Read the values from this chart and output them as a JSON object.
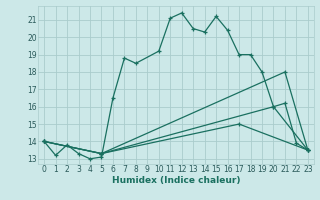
{
  "title": "",
  "xlabel": "Humidex (Indice chaleur)",
  "ylabel": "",
  "bg_color": "#cce8e8",
  "grid_color": "#aacccc",
  "line_color": "#1a7060",
  "xlim": [
    -0.5,
    23.5
  ],
  "ylim": [
    12.7,
    21.8
  ],
  "yticks": [
    13,
    14,
    15,
    16,
    17,
    18,
    19,
    20,
    21
  ],
  "xticks": [
    0,
    1,
    2,
    3,
    4,
    5,
    6,
    7,
    8,
    9,
    10,
    11,
    12,
    13,
    14,
    15,
    16,
    17,
    18,
    19,
    20,
    21,
    22,
    23
  ],
  "lines": [
    {
      "x": [
        0,
        1,
        2,
        3,
        4,
        5,
        6,
        7,
        8,
        10,
        11,
        12,
        13,
        14,
        15,
        16,
        17,
        18,
        19,
        20,
        21,
        22,
        23
      ],
      "y": [
        14.0,
        13.2,
        13.8,
        13.3,
        13.0,
        13.1,
        16.5,
        18.8,
        18.5,
        19.2,
        21.1,
        21.4,
        20.5,
        20.3,
        21.2,
        20.4,
        19.0,
        19.0,
        18.0,
        16.0,
        16.2,
        13.9,
        13.5
      ]
    },
    {
      "x": [
        0,
        5,
        21,
        23
      ],
      "y": [
        14.0,
        13.3,
        18.0,
        13.5
      ]
    },
    {
      "x": [
        0,
        5,
        20,
        23
      ],
      "y": [
        14.0,
        13.3,
        16.0,
        13.5
      ]
    },
    {
      "x": [
        0,
        5,
        17,
        23
      ],
      "y": [
        14.0,
        13.3,
        15.0,
        13.5
      ]
    }
  ]
}
